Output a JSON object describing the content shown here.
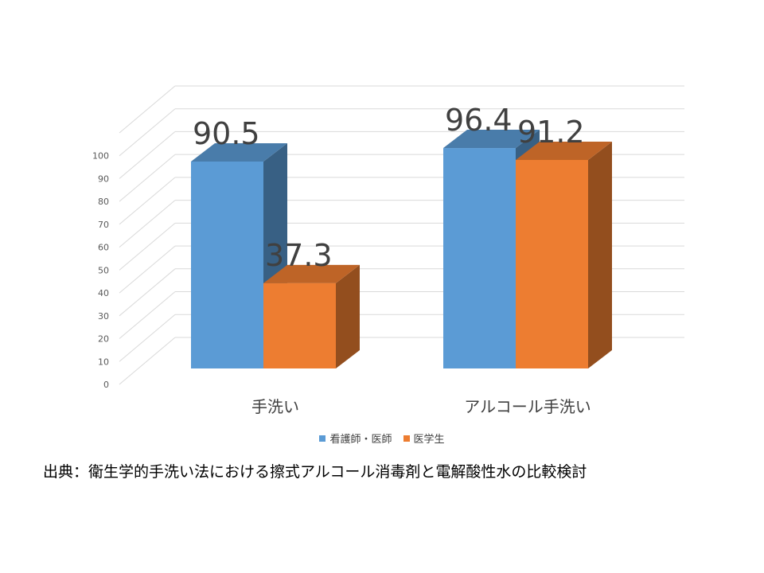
{
  "chart_data": {
    "type": "bar",
    "categories": [
      "手洗い",
      "アルコール手洗い"
    ],
    "series": [
      {
        "name": "看護師・医師",
        "values": [
          90.5,
          96.4
        ],
        "color": "#5b9bd5"
      },
      {
        "name": "医学生",
        "values": [
          37.3,
          91.2
        ],
        "color": "#ed7d31"
      }
    ],
    "data_labels": [
      "90.5",
      "96.4",
      "37.3",
      "91.2"
    ],
    "y_ticks": [
      "0",
      "10",
      "20",
      "30",
      "40",
      "50",
      "60",
      "70",
      "80",
      "90",
      "100"
    ],
    "ylim": [
      0,
      100
    ],
    "grid": true,
    "style": "3d-column",
    "legend_position": "bottom"
  },
  "source_text": "出典：衛生学的手洗い法における擦式アルコール消毒剤と電解酸性水の比較検討"
}
